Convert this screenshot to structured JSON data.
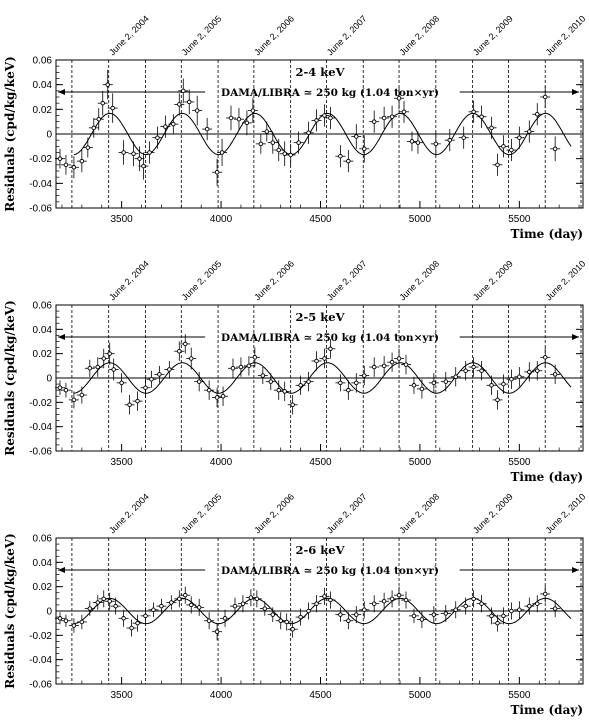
{
  "chart_data": [
    {
      "type": "scatter",
      "title": "2-4 keV",
      "banner": "DAMA/LIBRA ≃ 250 kg   (1.04 ton×yr)",
      "xlabel": "Time (day)",
      "ylabel": "Residuals (cpd/kg/keV)",
      "xlim": [
        3170,
        5820
      ],
      "ylim": [
        -0.06,
        0.06
      ],
      "x_ticks": [
        "3500",
        "4000",
        "4500",
        "5000",
        "5500"
      ],
      "y_ticks": [
        "-0.06",
        "-0.04",
        "-0.02",
        "0",
        "0.02",
        "0.04",
        "0.06"
      ],
      "date_lines": [
        {
          "x": 3250,
          "label": ""
        },
        {
          "x": 3435,
          "label": "June 2, 2004"
        },
        {
          "x": 3620,
          "label": ""
        },
        {
          "x": 3800,
          "label": "June 2, 2005"
        },
        {
          "x": 3985,
          "label": ""
        },
        {
          "x": 4165,
          "label": "June 2, 2006"
        },
        {
          "x": 4350,
          "label": ""
        },
        {
          "x": 4530,
          "label": "June 2, 2007"
        },
        {
          "x": 4715,
          "label": ""
        },
        {
          "x": 4895,
          "label": "June 2, 2008"
        },
        {
          "x": 5080,
          "label": ""
        },
        {
          "x": 5265,
          "label": "June 2, 2009"
        },
        {
          "x": 5445,
          "label": ""
        },
        {
          "x": 5630,
          "label": "June 2, 2010"
        },
        {
          "x": 5810,
          "label": ""
        }
      ],
      "modulation": {
        "amplitude": 0.0167,
        "period": 365.25,
        "phase": 152.5
      },
      "points": [
        [
          3190,
          -0.02,
          0.008
        ],
        [
          3220,
          -0.025,
          0.008
        ],
        [
          3260,
          -0.027,
          0.009
        ],
        [
          3300,
          -0.022,
          0.009
        ],
        [
          3330,
          -0.011,
          0.008
        ],
        [
          3360,
          0.005,
          0.008
        ],
        [
          3385,
          0.012,
          0.009
        ],
        [
          3405,
          0.025,
          0.01
        ],
        [
          3430,
          0.04,
          0.012
        ],
        [
          3455,
          0.021,
          0.012
        ],
        [
          3510,
          -0.015,
          0.01
        ],
        [
          3560,
          -0.016,
          0.01
        ],
        [
          3590,
          -0.02,
          0.01
        ],
        [
          3610,
          -0.026,
          0.011
        ],
        [
          3640,
          -0.015,
          0.009
        ],
        [
          3680,
          -0.003,
          0.009
        ],
        [
          3720,
          0.006,
          0.009
        ],
        [
          3760,
          0.008,
          0.008
        ],
        [
          3790,
          0.024,
          0.009
        ],
        [
          3810,
          0.035,
          0.01
        ],
        [
          3840,
          0.026,
          0.01
        ],
        [
          3880,
          0.019,
          0.012
        ],
        [
          3930,
          0.004,
          0.009
        ],
        [
          3980,
          -0.031,
          0.011
        ],
        [
          4005,
          -0.015,
          0.011
        ],
        [
          4050,
          0.013,
          0.01
        ],
        [
          4090,
          0.012,
          0.009
        ],
        [
          4130,
          0.009,
          0.01
        ],
        [
          4160,
          0.019,
          0.01
        ],
        [
          4200,
          -0.008,
          0.008
        ],
        [
          4230,
          0.002,
          0.008
        ],
        [
          4260,
          -0.007,
          0.009
        ],
        [
          4290,
          -0.013,
          0.009
        ],
        [
          4320,
          -0.016,
          0.01
        ],
        [
          4350,
          -0.017,
          0.009
        ],
        [
          4390,
          -0.007,
          0.009
        ],
        [
          4440,
          0.001,
          0.009
        ],
        [
          4480,
          0.011,
          0.009
        ],
        [
          4520,
          0.015,
          0.009
        ],
        [
          4550,
          0.013,
          0.009
        ],
        [
          4600,
          -0.018,
          0.009
        ],
        [
          4640,
          -0.022,
          0.009
        ],
        [
          4680,
          -0.002,
          0.01
        ],
        [
          4720,
          -0.012,
          0.011
        ],
        [
          4770,
          0.01,
          0.009
        ],
        [
          4820,
          0.013,
          0.009
        ],
        [
          4860,
          0.014,
          0.009
        ],
        [
          4895,
          0.029,
          0.009
        ],
        [
          4920,
          0.018,
          0.009
        ],
        [
          4960,
          -0.006,
          0.008
        ],
        [
          4990,
          -0.007,
          0.009
        ],
        [
          5080,
          -0.008,
          0.009
        ],
        [
          5150,
          -0.005,
          0.009
        ],
        [
          5220,
          -0.003,
          0.009
        ],
        [
          5270,
          0.018,
          0.009
        ],
        [
          5310,
          0.014,
          0.009
        ],
        [
          5360,
          0.005,
          0.009
        ],
        [
          5390,
          -0.025,
          0.009
        ],
        [
          5420,
          -0.01,
          0.009
        ],
        [
          5460,
          -0.013,
          0.009
        ],
        [
          5500,
          -0.003,
          0.009
        ],
        [
          5550,
          0.002,
          0.009
        ],
        [
          5590,
          0.016,
          0.009
        ],
        [
          5630,
          0.03,
          0.009
        ],
        [
          5680,
          -0.012,
          0.01
        ]
      ]
    },
    {
      "type": "scatter",
      "title": "2-5 keV",
      "banner": "DAMA/LIBRA ≃ 250 kg   (1.04 ton×yr)",
      "xlabel": "Time (day)",
      "ylabel": "Residuals (cpd/kg/keV)",
      "xlim": [
        3170,
        5820
      ],
      "ylim": [
        -0.06,
        0.06
      ],
      "x_ticks": [
        "3500",
        "4000",
        "4500",
        "5000",
        "5500"
      ],
      "y_ticks": [
        "-0.06",
        "-0.04",
        "-0.02",
        "0",
        "0.02",
        "0.04",
        "0.06"
      ],
      "date_lines": [
        {
          "x": 3250,
          "label": ""
        },
        {
          "x": 3435,
          "label": "June 2, 2004"
        },
        {
          "x": 3620,
          "label": ""
        },
        {
          "x": 3800,
          "label": "June 2, 2005"
        },
        {
          "x": 3985,
          "label": ""
        },
        {
          "x": 4165,
          "label": "June 2, 2006"
        },
        {
          "x": 4350,
          "label": ""
        },
        {
          "x": 4530,
          "label": "June 2, 2007"
        },
        {
          "x": 4715,
          "label": ""
        },
        {
          "x": 4895,
          "label": "June 2, 2008"
        },
        {
          "x": 5080,
          "label": ""
        },
        {
          "x": 5265,
          "label": "June 2, 2009"
        },
        {
          "x": 5445,
          "label": ""
        },
        {
          "x": 5630,
          "label": "June 2, 2010"
        },
        {
          "x": 5810,
          "label": ""
        }
      ],
      "modulation": {
        "amplitude": 0.0125,
        "period": 365.25,
        "phase": 152.5
      },
      "points": [
        [
          3190,
          -0.008,
          0.006
        ],
        [
          3220,
          -0.01,
          0.006
        ],
        [
          3260,
          -0.018,
          0.007
        ],
        [
          3300,
          -0.014,
          0.007
        ],
        [
          3340,
          0.008,
          0.007
        ],
        [
          3380,
          0.009,
          0.008
        ],
        [
          3410,
          0.016,
          0.008
        ],
        [
          3440,
          0.02,
          0.009
        ],
        [
          3460,
          0.007,
          0.009
        ],
        [
          3500,
          -0.004,
          0.008
        ],
        [
          3540,
          -0.022,
          0.008
        ],
        [
          3580,
          -0.019,
          0.008
        ],
        [
          3620,
          -0.008,
          0.008
        ],
        [
          3650,
          -0.001,
          0.007
        ],
        [
          3690,
          0.003,
          0.007
        ],
        [
          3740,
          0.007,
          0.007
        ],
        [
          3790,
          0.022,
          0.008
        ],
        [
          3820,
          0.028,
          0.008
        ],
        [
          3850,
          0.016,
          0.009
        ],
        [
          3890,
          -0.003,
          0.008
        ],
        [
          3940,
          -0.01,
          0.008
        ],
        [
          3980,
          -0.016,
          0.008
        ],
        [
          4010,
          -0.015,
          0.008
        ],
        [
          4060,
          0.008,
          0.008
        ],
        [
          4100,
          0.009,
          0.008
        ],
        [
          4140,
          0.01,
          0.008
        ],
        [
          4170,
          0.017,
          0.008
        ],
        [
          4210,
          0.002,
          0.007
        ],
        [
          4250,
          -0.003,
          0.007
        ],
        [
          4290,
          -0.01,
          0.008
        ],
        [
          4320,
          -0.011,
          0.008
        ],
        [
          4360,
          -0.022,
          0.008
        ],
        [
          4400,
          -0.006,
          0.008
        ],
        [
          4440,
          -0.003,
          0.008
        ],
        [
          4480,
          0.014,
          0.008
        ],
        [
          4520,
          0.016,
          0.008
        ],
        [
          4550,
          0.024,
          0.008
        ],
        [
          4600,
          -0.004,
          0.007
        ],
        [
          4640,
          -0.01,
          0.008
        ],
        [
          4680,
          -0.004,
          0.008
        ],
        [
          4720,
          0.002,
          0.008
        ],
        [
          4770,
          0.009,
          0.008
        ],
        [
          4820,
          0.01,
          0.008
        ],
        [
          4860,
          0.013,
          0.008
        ],
        [
          4895,
          0.016,
          0.008
        ],
        [
          4930,
          0.011,
          0.008
        ],
        [
          4970,
          -0.006,
          0.007
        ],
        [
          5010,
          -0.009,
          0.008
        ],
        [
          5070,
          -0.004,
          0.008
        ],
        [
          5130,
          -0.003,
          0.008
        ],
        [
          5180,
          0.001,
          0.008
        ],
        [
          5230,
          0.006,
          0.008
        ],
        [
          5270,
          0.009,
          0.008
        ],
        [
          5310,
          0.006,
          0.008
        ],
        [
          5360,
          -0.006,
          0.008
        ],
        [
          5390,
          -0.018,
          0.008
        ],
        [
          5420,
          -0.005,
          0.008
        ],
        [
          5460,
          -0.001,
          0.008
        ],
        [
          5500,
          0.001,
          0.008
        ],
        [
          5550,
          0.005,
          0.008
        ],
        [
          5590,
          0.006,
          0.008
        ],
        [
          5630,
          0.017,
          0.008
        ],
        [
          5680,
          0.003,
          0.008
        ]
      ]
    },
    {
      "type": "scatter",
      "title": "2-6 keV",
      "banner": "DAMA/LIBRA ≃ 250 kg   (1.04 ton×yr)",
      "xlabel": "Time (day)",
      "ylabel": "Residuals (cpd/kg/keV)",
      "xlim": [
        3170,
        5820
      ],
      "ylim": [
        -0.06,
        0.06
      ],
      "x_ticks": [
        "3500",
        "4000",
        "4500",
        "5000",
        "5500"
      ],
      "y_ticks": [
        "-0.06",
        "-0.04",
        "-0.02",
        "0",
        "0.02",
        "0.04",
        "0.06"
      ],
      "date_lines": [
        {
          "x": 3250,
          "label": ""
        },
        {
          "x": 3435,
          "label": "June 2, 2004"
        },
        {
          "x": 3620,
          "label": ""
        },
        {
          "x": 3800,
          "label": "June 2, 2005"
        },
        {
          "x": 3985,
          "label": ""
        },
        {
          "x": 4165,
          "label": "June 2, 2006"
        },
        {
          "x": 4350,
          "label": ""
        },
        {
          "x": 4530,
          "label": "June 2, 2007"
        },
        {
          "x": 4715,
          "label": ""
        },
        {
          "x": 4895,
          "label": "June 2, 2008"
        },
        {
          "x": 5080,
          "label": ""
        },
        {
          "x": 5265,
          "label": "June 2, 2009"
        },
        {
          "x": 5445,
          "label": ""
        },
        {
          "x": 5630,
          "label": "June 2, 2010"
        },
        {
          "x": 5810,
          "label": ""
        }
      ],
      "modulation": {
        "amplitude": 0.0104,
        "period": 365.25,
        "phase": 152.5
      },
      "points": [
        [
          3190,
          -0.006,
          0.005
        ],
        [
          3220,
          -0.008,
          0.005
        ],
        [
          3260,
          -0.012,
          0.006
        ],
        [
          3300,
          -0.009,
          0.006
        ],
        [
          3340,
          0.002,
          0.006
        ],
        [
          3380,
          0.007,
          0.006
        ],
        [
          3410,
          0.01,
          0.007
        ],
        [
          3440,
          0.008,
          0.007
        ],
        [
          3470,
          0.004,
          0.007
        ],
        [
          3510,
          -0.006,
          0.007
        ],
        [
          3550,
          -0.014,
          0.007
        ],
        [
          3580,
          -0.01,
          0.007
        ],
        [
          3620,
          -0.004,
          0.007
        ],
        [
          3660,
          0.001,
          0.006
        ],
        [
          3700,
          0.004,
          0.006
        ],
        [
          3750,
          0.007,
          0.006
        ],
        [
          3790,
          0.01,
          0.007
        ],
        [
          3820,
          0.013,
          0.007
        ],
        [
          3850,
          0.005,
          0.007
        ],
        [
          3890,
          0.003,
          0.007
        ],
        [
          3940,
          -0.008,
          0.007
        ],
        [
          3980,
          -0.017,
          0.007
        ],
        [
          4020,
          -0.006,
          0.007
        ],
        [
          4070,
          0.004,
          0.007
        ],
        [
          4110,
          0.006,
          0.007
        ],
        [
          4150,
          0.011,
          0.007
        ],
        [
          4180,
          0.01,
          0.007
        ],
        [
          4220,
          0.002,
          0.006
        ],
        [
          4260,
          -0.003,
          0.006
        ],
        [
          4300,
          -0.008,
          0.007
        ],
        [
          4330,
          -0.009,
          0.007
        ],
        [
          4360,
          -0.015,
          0.007
        ],
        [
          4400,
          -0.005,
          0.007
        ],
        [
          4440,
          0.0,
          0.007
        ],
        [
          4480,
          0.006,
          0.007
        ],
        [
          4520,
          0.012,
          0.007
        ],
        [
          4550,
          0.009,
          0.007
        ],
        [
          4600,
          -0.003,
          0.006
        ],
        [
          4640,
          -0.008,
          0.007
        ],
        [
          4680,
          -0.003,
          0.007
        ],
        [
          4720,
          0.001,
          0.007
        ],
        [
          4770,
          0.006,
          0.007
        ],
        [
          4820,
          0.008,
          0.007
        ],
        [
          4860,
          0.01,
          0.007
        ],
        [
          4895,
          0.013,
          0.007
        ],
        [
          4930,
          0.009,
          0.007
        ],
        [
          4970,
          -0.004,
          0.006
        ],
        [
          5010,
          -0.007,
          0.007
        ],
        [
          5070,
          -0.003,
          0.007
        ],
        [
          5130,
          -0.002,
          0.007
        ],
        [
          5180,
          0.001,
          0.007
        ],
        [
          5230,
          0.004,
          0.007
        ],
        [
          5270,
          0.01,
          0.007
        ],
        [
          5310,
          0.006,
          0.007
        ],
        [
          5360,
          -0.004,
          0.007
        ],
        [
          5390,
          -0.01,
          0.007
        ],
        [
          5420,
          -0.004,
          0.007
        ],
        [
          5460,
          0.0,
          0.007
        ],
        [
          5500,
          0.001,
          0.007
        ],
        [
          5550,
          0.004,
          0.007
        ],
        [
          5590,
          0.006,
          0.007
        ],
        [
          5630,
          0.014,
          0.007
        ],
        [
          5680,
          0.002,
          0.007
        ]
      ]
    }
  ]
}
